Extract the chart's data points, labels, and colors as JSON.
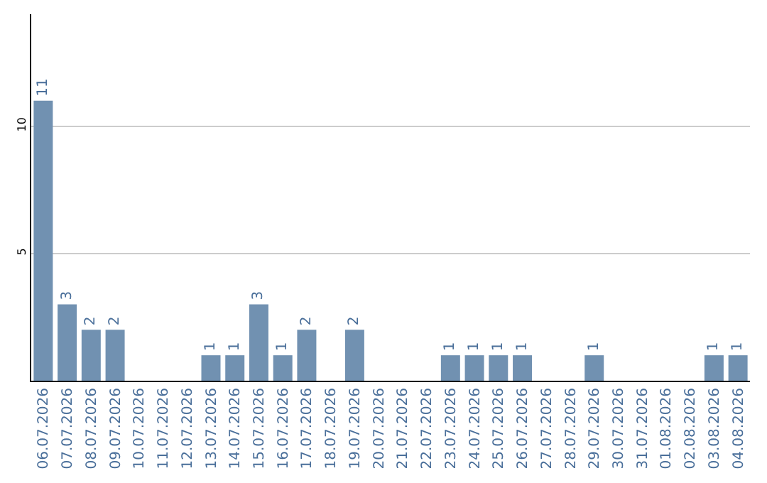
{
  "chart_data": {
    "type": "bar",
    "categories": [
      "06.07.2026",
      "07.07.2026",
      "08.07.2026",
      "09.07.2026",
      "10.07.2026",
      "11.07.2026",
      "12.07.2026",
      "13.07.2026",
      "14.07.2026",
      "15.07.2026",
      "16.07.2026",
      "17.07.2026",
      "18.07.2026",
      "19.07.2026",
      "20.07.2026",
      "21.07.2026",
      "22.07.2026",
      "23.07.2026",
      "24.07.2026",
      "25.07.2026",
      "26.07.2026",
      "27.07.2026",
      "28.07.2026",
      "29.07.2026",
      "30.07.2026",
      "31.07.2026",
      "01.08.2026",
      "02.08.2026",
      "03.08.2026",
      "04.08.2026"
    ],
    "values": [
      11,
      3,
      2,
      2,
      0,
      0,
      0,
      1,
      1,
      3,
      1,
      2,
      0,
      2,
      0,
      0,
      0,
      1,
      1,
      1,
      1,
      0,
      0,
      1,
      0,
      0,
      0,
      0,
      1,
      1
    ],
    "value_labels": [
      "11",
      "3",
      "2",
      "2",
      null,
      null,
      null,
      "1",
      "1",
      "3",
      "1",
      "2",
      null,
      "2",
      null,
      null,
      null,
      "1",
      "1",
      "1",
      "1",
      null,
      null,
      "1",
      null,
      null,
      null,
      null,
      "1",
      "1"
    ],
    "color": "#7191b1",
    "ylim": [
      0,
      14.4
    ],
    "yticks": [
      5,
      10
    ],
    "grid": "y",
    "legend": false
  }
}
